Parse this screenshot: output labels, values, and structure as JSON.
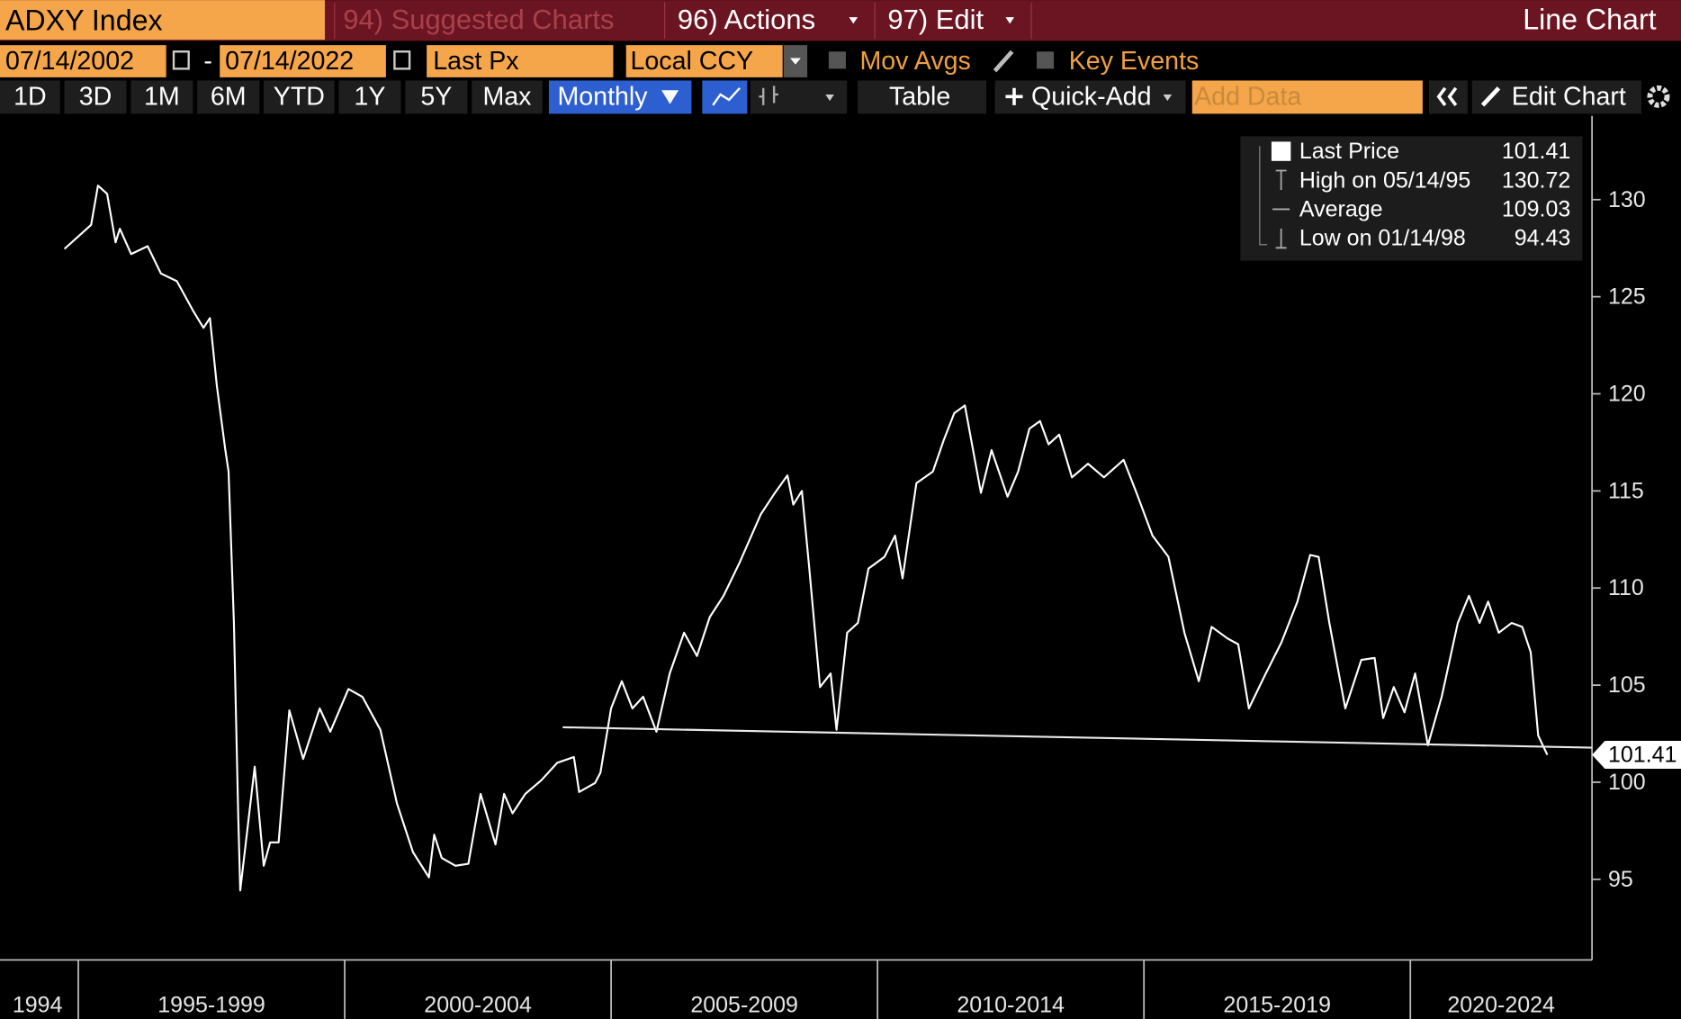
{
  "header": {
    "security": "ADXY Index",
    "suggested": "94) Suggested Charts",
    "actions": "96) Actions",
    "edit": "97) Edit",
    "chart_kind": "Line Chart"
  },
  "controls": {
    "start_date": "07/14/2002",
    "separator": "-",
    "end_date": "07/14/2022",
    "field": "Last Px",
    "currency": "Local CCY",
    "mov_avgs": "Mov Avgs",
    "key_events": "Key Events"
  },
  "toolbar": {
    "ranges": [
      "1D",
      "3D",
      "1M",
      "6M",
      "YTD",
      "1Y",
      "5Y",
      "Max"
    ],
    "frequency": "Monthly",
    "table": "Table",
    "quick_add": "Quick-Add",
    "add_data": "Add Data",
    "edit_chart": "Edit Chart"
  },
  "chart_data": {
    "type": "line",
    "xlim": [
      1993.53,
      2023.41
    ],
    "xticks": [
      1995,
      2000,
      2005,
      2010,
      2015,
      2020
    ],
    "xtick_labels": [
      "1994",
      "1995-1999",
      "2000-2004",
      "2005-2009",
      "2010-2014",
      "2015-2019",
      "2020-2024"
    ],
    "ylim": [
      90.85,
      134.31
    ],
    "yticks": [
      95,
      100,
      105,
      110,
      115,
      120,
      125,
      130
    ],
    "series": [
      {
        "name": "Last Price",
        "color": "#ffffff",
        "x": [
          1994.74,
          1995.04,
          1995.24,
          1995.37,
          1995.54,
          1995.7,
          1995.78,
          1995.99,
          1996.3,
          1996.55,
          1996.85,
          1997.15,
          1997.35,
          1997.47,
          1997.6,
          1997.76,
          1997.82,
          1997.92,
          1998.0,
          1998.04,
          1998.31,
          1998.48,
          1998.6,
          1998.76,
          1998.96,
          1999.22,
          1999.53,
          1999.73,
          2000.07,
          2000.33,
          2000.67,
          2000.98,
          2001.28,
          2001.58,
          2001.68,
          2001.82,
          2002.08,
          2002.32,
          2002.55,
          2002.83,
          2002.99,
          2003.15,
          2003.39,
          2003.69,
          2003.99,
          2004.3,
          2004.4,
          2004.7,
          2004.8,
          2005.0,
          2005.2,
          2005.4,
          2005.6,
          2005.85,
          2006.1,
          2006.37,
          2006.61,
          2006.85,
          2007.11,
          2007.41,
          2007.81,
          2008.05,
          2008.31,
          2008.42,
          2008.58,
          2008.72,
          2008.92,
          2009.12,
          2009.23,
          2009.43,
          2009.63,
          2009.83,
          2010.13,
          2010.33,
          2010.47,
          2010.73,
          2011.04,
          2011.24,
          2011.44,
          2011.64,
          2011.94,
          2012.14,
          2012.44,
          2012.64,
          2012.85,
          2013.05,
          2013.21,
          2013.41,
          2013.65,
          2013.95,
          2014.25,
          2014.62,
          2014.86,
          2015.16,
          2015.46,
          2015.76,
          2016.03,
          2016.27,
          2016.57,
          2016.77,
          2016.97,
          2017.27,
          2017.58,
          2017.88,
          2018.12,
          2018.28,
          2018.48,
          2018.78,
          2019.08,
          2019.33,
          2019.49,
          2019.69,
          2019.89,
          2020.09,
          2020.33,
          2020.59,
          2020.89,
          2021.1,
          2021.3,
          2021.46,
          2021.66,
          2021.9,
          2022.1,
          2022.26,
          2022.4,
          2022.57
        ],
        "values": [
          127.46,
          128.2,
          128.7,
          130.72,
          130.3,
          127.8,
          128.5,
          127.2,
          127.6,
          126.2,
          125.8,
          124.3,
          123.4,
          123.9,
          120.4,
          117.1,
          116.0,
          108.2,
          98.3,
          94.43,
          100.8,
          95.7,
          96.9,
          96.9,
          103.7,
          101.2,
          103.8,
          102.6,
          104.8,
          104.4,
          102.7,
          98.9,
          96.4,
          95.1,
          97.3,
          96.1,
          95.7,
          95.8,
          99.4,
          96.8,
          99.4,
          98.4,
          99.4,
          100.1,
          101.0,
          101.3,
          99.5,
          99.96,
          100.5,
          103.8,
          105.2,
          103.8,
          104.4,
          102.6,
          105.6,
          107.7,
          106.5,
          108.5,
          109.6,
          111.3,
          113.8,
          114.8,
          115.8,
          114.3,
          115.0,
          111.0,
          104.9,
          105.6,
          102.7,
          107.7,
          108.2,
          111.0,
          111.6,
          112.7,
          110.5,
          115.4,
          116.0,
          117.6,
          119.0,
          119.4,
          114.9,
          117.1,
          114.7,
          116.0,
          118.2,
          118.6,
          117.4,
          117.9,
          115.7,
          116.4,
          115.7,
          116.6,
          114.9,
          112.7,
          111.6,
          107.7,
          105.2,
          108.0,
          107.4,
          107.1,
          103.8,
          105.5,
          107.2,
          109.3,
          111.7,
          111.6,
          108.2,
          103.8,
          106.3,
          106.4,
          103.3,
          104.9,
          103.6,
          105.6,
          101.9,
          104.4,
          108.2,
          109.6,
          108.2,
          109.3,
          107.7,
          108.2,
          108.0,
          106.7,
          102.4,
          101.41
        ]
      }
    ],
    "stats": [
      {
        "label": "High on 05/14/95",
        "value": 130.72
      },
      {
        "label": "Average",
        "value": 109.03
      },
      {
        "label": "Low on 01/14/98",
        "value": 94.43
      }
    ],
    "trend_line": {
      "color": "#e8e8e8",
      "x": [
        2004.09,
        2023.41
      ],
      "values": [
        102.83,
        101.78
      ]
    }
  }
}
